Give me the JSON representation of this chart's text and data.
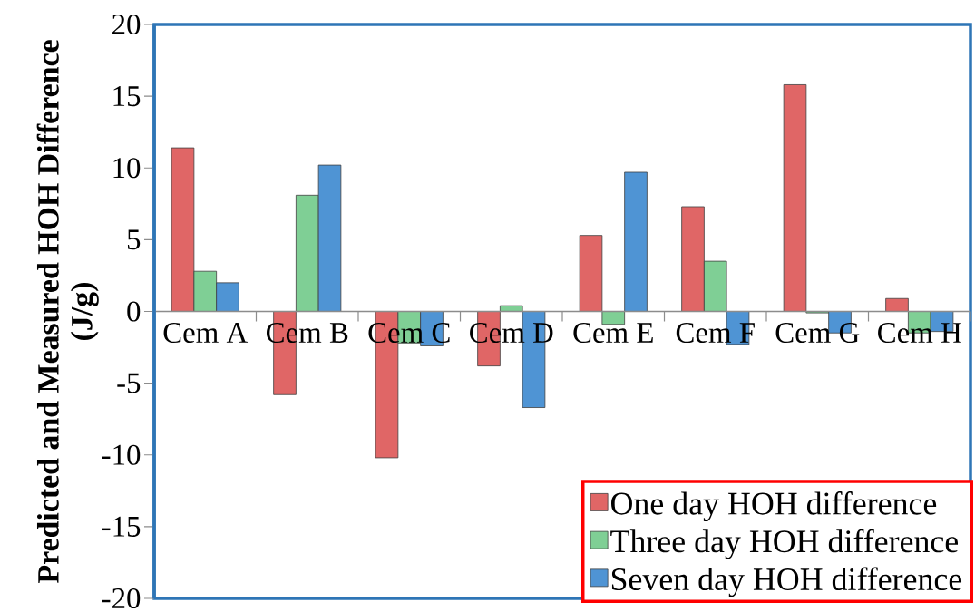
{
  "chart_data": {
    "type": "bar",
    "ylabel": "Predicted and Measured HOH Difference (J/g)",
    "categories": [
      "Cem A",
      "Cem B",
      "Cem C",
      "Cem D",
      "Cem E",
      "Cem F",
      "Cem G",
      "Cem H"
    ],
    "series": [
      {
        "name": "One day HOH difference",
        "color": "#e06666",
        "values": [
          11.4,
          -5.8,
          -10.2,
          -3.8,
          5.3,
          7.3,
          15.8,
          0.9
        ]
      },
      {
        "name": "Three day HOH difference",
        "color": "#7fcf95",
        "values": [
          2.8,
          8.1,
          -2.2,
          0.4,
          -0.9,
          3.5,
          -0.1,
          -1.5
        ]
      },
      {
        "name": "Seven day HOH difference",
        "color": "#4f94d4",
        "values": [
          2.0,
          10.2,
          -2.4,
          -6.7,
          9.7,
          -2.3,
          -1.5,
          -1.4
        ]
      }
    ],
    "ylim": [
      -20,
      20
    ],
    "yticks": [
      -20,
      -15,
      -10,
      -5,
      0,
      5,
      10,
      15,
      20
    ],
    "legend": "bottom right"
  }
}
